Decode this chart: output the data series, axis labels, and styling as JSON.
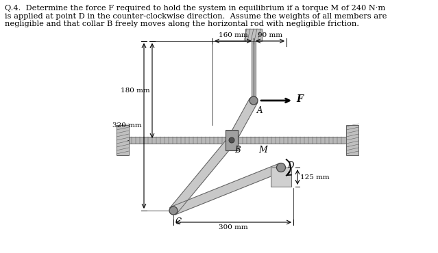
{
  "fig_width": 6.39,
  "fig_height": 3.7,
  "dpi": 100,
  "background": "#ffffff",
  "question_text": "Q.4.  Determine the force F required to hold the system in equilibrium if a torque M of 240 N·m\nis applied at point D in the counter-clockwise direction.  Assume the weights of all members are\nnegligible and that collar B freely moves along the horizontal rod with negligible friction.",
  "dim_160": "160 mm",
  "dim_90": "90 mm",
  "dim_180": "180 mm",
  "dim_320": "320 mm",
  "dim_300": "300 mm",
  "dim_125": "125 mm",
  "label_F": "F",
  "label_A": "A",
  "label_B": "B",
  "label_C": "C",
  "label_D": "D",
  "label_M": "M",
  "gray_member": "#c8c8c8",
  "dark_gray": "#606060",
  "light_gray": "#d0d0d0",
  "rod_color": "#b8b8b8",
  "wall_color": "#c0c0c0"
}
